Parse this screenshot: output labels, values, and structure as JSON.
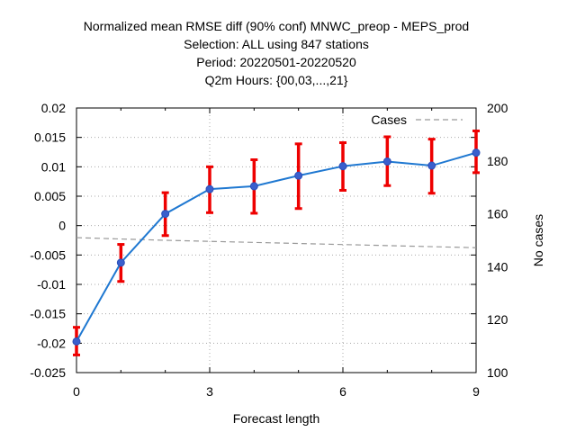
{
  "chart_data": {
    "type": "line",
    "title_lines": [
      "Normalized mean RMSE diff (90% conf) MNWC_preop - MEPS_prod",
      "Selection: ALL using   847 stations",
      "Period: 20220501-20220520",
      "Q2m   Hours: {00,03,...,21}"
    ],
    "xlabel": "Forecast length",
    "ylabel": "",
    "y2label": "No cases",
    "xlim": [
      0,
      9
    ],
    "ylim": [
      -0.025,
      0.02
    ],
    "y2lim": [
      100,
      200
    ],
    "x_ticks": [
      0,
      3,
      6,
      9
    ],
    "x_tick_labels": [
      "0",
      "3",
      "6",
      "9"
    ],
    "y_ticks": [
      -0.025,
      -0.02,
      -0.015,
      -0.01,
      -0.005,
      0,
      0.005,
      0.01,
      0.015,
      0.02
    ],
    "y_tick_labels": [
      "-0.025",
      "-0.02",
      "-0.015",
      "-0.01",
      "-0.005",
      "0",
      "0.005",
      "0.01",
      "0.015",
      "0.02"
    ],
    "y2_ticks": [
      100,
      120,
      140,
      160,
      180,
      200
    ],
    "y2_tick_labels": [
      "100",
      "120",
      "140",
      "160",
      "180",
      "200"
    ],
    "grid": true,
    "legend_position": "top-right",
    "colors": {
      "line": "#1f78d1",
      "marker": "#3a5fcd",
      "errorbar": "#ee0000",
      "cases": "#999999",
      "grid": "#aaaaaa"
    },
    "series": [
      {
        "type": "line-errorbar",
        "x": [
          0,
          1,
          2,
          3,
          4,
          5,
          6,
          7,
          8,
          9
        ],
        "y": [
          -0.0197,
          -0.0063,
          0.002,
          0.0062,
          0.0067,
          0.0085,
          0.0101,
          0.0109,
          0.0102,
          0.0124
        ],
        "y_low": [
          -0.022,
          -0.0095,
          -0.0017,
          0.0022,
          0.0021,
          0.0029,
          0.006,
          0.0068,
          0.0055,
          0.009
        ],
        "y_high": [
          -0.0173,
          -0.0032,
          0.0056,
          0.01,
          0.0112,
          0.0139,
          0.0141,
          0.0151,
          0.0147,
          0.0161
        ]
      },
      {
        "name": "Cases",
        "type": "line-dashed",
        "axis": "y2",
        "x": [
          0,
          1,
          2,
          3,
          4,
          5,
          6,
          7,
          8,
          9
        ],
        "y": [
          151,
          150.5,
          150,
          149.6,
          149.2,
          148.8,
          148.4,
          148,
          147.6,
          147.2
        ]
      }
    ]
  }
}
